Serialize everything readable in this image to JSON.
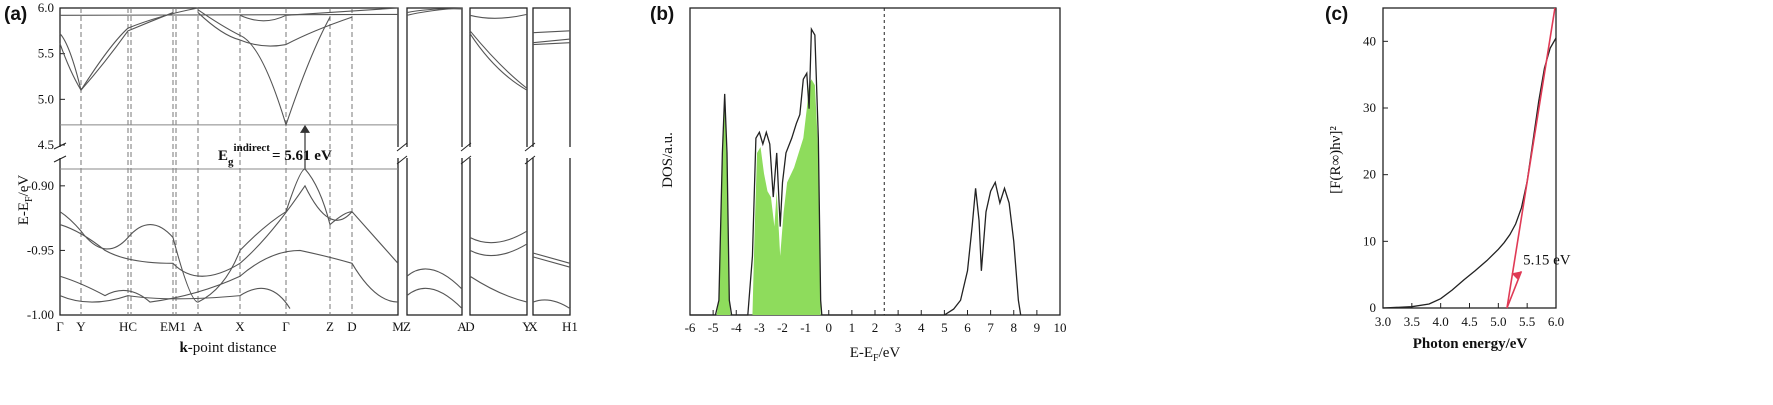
{
  "panels": {
    "a": {
      "label": "(a)"
    },
    "b": {
      "label": "(b)"
    },
    "c": {
      "label": "(c)"
    }
  },
  "chart_data": [
    {
      "type": "line",
      "panel": "(a)",
      "ylabel": "E-E_F/eV",
      "xlabel": "k-point distance",
      "ylim_upper": [
        4.5,
        6.0
      ],
      "ylim_lower": [
        -1.0,
        -0.88
      ],
      "yticks_upper": [
        "6.0",
        "5.5",
        "5.0",
        "4.5"
      ],
      "yticks_lower": [
        "-0.90",
        "-0.95",
        "-1.00"
      ],
      "kpoints_main": [
        "Γ",
        "Y",
        "HC",
        "EM1",
        "A",
        "X",
        "Γ",
        "Z",
        "D",
        "M"
      ],
      "kpoints_side1": [
        "Z",
        "A"
      ],
      "kpoints_side2": [
        "D",
        "Y"
      ],
      "kpoints_side3": [
        "X",
        "H1"
      ],
      "annotation": {
        "label": "E_g^indirect = 5.61 eV",
        "main": "E",
        "sub": "g",
        "sup": "indirect",
        "value": "= 5.61 eV"
      },
      "cbm": 4.72,
      "vbm": -0.887
    },
    {
      "type": "area",
      "panel": "(b)",
      "xlabel": "E-E_F/eV",
      "ylabel": "DOS/a.u.",
      "xlim": [
        -6,
        10
      ],
      "xticks": [
        "-6",
        "-5",
        "-4",
        "-3",
        "-2",
        "-1",
        "0",
        "1",
        "2",
        "3",
        "4",
        "5",
        "6",
        "7",
        "8",
        "9",
        "10"
      ],
      "fermi_marker": 2.4,
      "total_dos": [
        [
          -6,
          0
        ],
        [
          -4.9,
          0
        ],
        [
          -4.75,
          0.05
        ],
        [
          -4.6,
          0.55
        ],
        [
          -4.5,
          0.75
        ],
        [
          -4.4,
          0.55
        ],
        [
          -4.3,
          0.05
        ],
        [
          -4.2,
          0
        ],
        [
          -3.5,
          0
        ],
        [
          -3.3,
          0.2
        ],
        [
          -3.15,
          0.6
        ],
        [
          -3.0,
          0.62
        ],
        [
          -2.85,
          0.58
        ],
        [
          -2.7,
          0.62
        ],
        [
          -2.55,
          0.58
        ],
        [
          -2.4,
          0.4
        ],
        [
          -2.25,
          0.55
        ],
        [
          -2.1,
          0.3
        ],
        [
          -2.0,
          0.45
        ],
        [
          -1.85,
          0.55
        ],
        [
          -1.6,
          0.6
        ],
        [
          -1.4,
          0.65
        ],
        [
          -1.25,
          0.68
        ],
        [
          -1.1,
          0.8
        ],
        [
          -0.95,
          0.82
        ],
        [
          -0.85,
          0.7
        ],
        [
          -0.75,
          0.97
        ],
        [
          -0.6,
          0.95
        ],
        [
          -0.45,
          0.6
        ],
        [
          -0.35,
          0.05
        ],
        [
          -0.3,
          0
        ],
        [
          5.0,
          0
        ],
        [
          5.4,
          0.02
        ],
        [
          5.7,
          0.05
        ],
        [
          6.0,
          0.15
        ],
        [
          6.2,
          0.3
        ],
        [
          6.35,
          0.43
        ],
        [
          6.5,
          0.32
        ],
        [
          6.6,
          0.15
        ],
        [
          6.8,
          0.35
        ],
        [
          7.0,
          0.42
        ],
        [
          7.2,
          0.45
        ],
        [
          7.4,
          0.38
        ],
        [
          7.6,
          0.43
        ],
        [
          7.8,
          0.38
        ],
        [
          8.0,
          0.25
        ],
        [
          8.2,
          0.05
        ],
        [
          8.3,
          0
        ]
      ],
      "partial_dos": [
        [
          -4.85,
          0
        ],
        [
          -4.75,
          0.05
        ],
        [
          -4.6,
          0.5
        ],
        [
          -4.5,
          0.72
        ],
        [
          -4.4,
          0.5
        ],
        [
          -4.3,
          0.05
        ],
        [
          -4.25,
          0
        ],
        [
          -3.3,
          0
        ],
        [
          -3.2,
          0.3
        ],
        [
          -3.1,
          0.55
        ],
        [
          -2.95,
          0.57
        ],
        [
          -2.8,
          0.48
        ],
        [
          -2.65,
          0.42
        ],
        [
          -2.5,
          0.4
        ],
        [
          -2.35,
          0.3
        ],
        [
          -2.25,
          0.42
        ],
        [
          -2.1,
          0.2
        ],
        [
          -1.95,
          0.35
        ],
        [
          -1.8,
          0.45
        ],
        [
          -1.5,
          0.5
        ],
        [
          -1.3,
          0.55
        ],
        [
          -1.1,
          0.6
        ],
        [
          -0.95,
          0.7
        ],
        [
          -0.85,
          0.78
        ],
        [
          -0.75,
          0.8
        ],
        [
          -0.6,
          0.78
        ],
        [
          -0.45,
          0.55
        ],
        [
          -0.35,
          0
        ]
      ]
    },
    {
      "type": "line",
      "panel": "(c)",
      "xlabel": "Photon energy/eV",
      "ylabel": "[F(R∞)hν]²",
      "xlim": [
        3.0,
        6.0
      ],
      "ylim": [
        0,
        45
      ],
      "xticks": [
        "3.0",
        "3.5",
        "4.0",
        "4.5",
        "5.0",
        "5.5",
        "6.0"
      ],
      "yticks": [
        "0",
        "10",
        "20",
        "30",
        "40"
      ],
      "series": [
        {
          "values": [
            [
              3.0,
              0.0
            ],
            [
              3.5,
              0.2
            ],
            [
              3.8,
              0.6
            ],
            [
              4.0,
              1.4
            ],
            [
              4.2,
              2.7
            ],
            [
              4.4,
              4.2
            ],
            [
              4.6,
              5.6
            ],
            [
              4.8,
              7.1
            ],
            [
              5.0,
              8.8
            ],
            [
              5.1,
              9.8
            ],
            [
              5.2,
              11.0
            ],
            [
              5.3,
              12.6
            ],
            [
              5.4,
              15.0
            ],
            [
              5.5,
              19.0
            ],
            [
              5.6,
              25.0
            ],
            [
              5.7,
              31.0
            ],
            [
              5.8,
              36.0
            ],
            [
              5.9,
              39.0
            ],
            [
              6.0,
              40.5
            ]
          ]
        }
      ],
      "tangent": [
        [
          5.15,
          0
        ],
        [
          6.0,
          46
        ]
      ],
      "annotation": {
        "label": "5.15 eV",
        "x": 5.15
      }
    }
  ]
}
